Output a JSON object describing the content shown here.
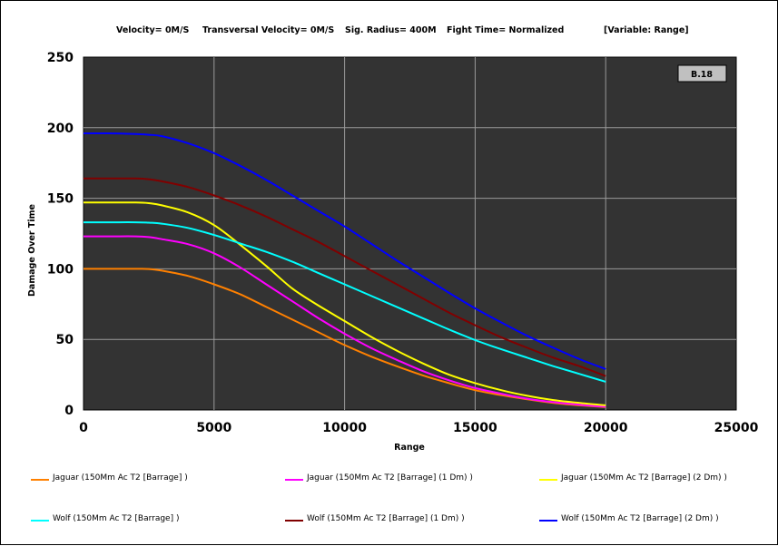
{
  "header": {
    "velocity": "Velocity= 0M/S",
    "transversal": "Transversal Velocity= 0M/S",
    "sig_radius": "Sig. Radius= 400M",
    "fight_time": "Fight Time= Normalized",
    "variable": "[Variable: Range]"
  },
  "badge": "B.18",
  "colors": {
    "plot_bg": "#333333",
    "grid": "#9a9a9a"
  },
  "chart_data": {
    "type": "line",
    "xlabel": "Range",
    "ylabel": "Damage Over Time",
    "xlim": [
      0,
      25000
    ],
    "ylim": [
      0,
      250
    ],
    "xticks": [
      "0",
      "5000",
      "10000",
      "15000",
      "20000",
      "25000"
    ],
    "yticks": [
      "0",
      "50",
      "100",
      "150",
      "200",
      "250"
    ],
    "grid": true,
    "legend_position": "bottom",
    "x": [
      0,
      1000,
      2000,
      2500,
      3000,
      4000,
      5000,
      6000,
      7000,
      8000,
      9000,
      10000,
      11000,
      12000,
      13000,
      14000,
      15000,
      16000,
      17000,
      18000,
      19000,
      20000
    ],
    "series": [
      {
        "name": "Jaguar (150Mm Ac T2 [Barrage] )",
        "color": "#ff8000",
        "values": [
          100,
          100,
          100,
          99.9,
          98.7,
          95,
          89,
          82,
          73,
          64,
          55,
          46,
          38,
          31,
          24.5,
          19,
          14,
          10.5,
          7.5,
          5,
          3.3,
          2
        ]
      },
      {
        "name": "Jaguar (150Mm Ac T2 [Barrage] (1 Dm) )",
        "color": "#ff00ff",
        "values": [
          123,
          123,
          123,
          122.5,
          121,
          117.5,
          111,
          101,
          89,
          77,
          65,
          54,
          44,
          35.5,
          27.5,
          21,
          15.5,
          11.5,
          8,
          5.5,
          3.7,
          2.3
        ]
      },
      {
        "name": "Jaguar (150Mm Ac T2 [Barrage] (2 Dm) )",
        "color": "#ffff00",
        "values": [
          147,
          147,
          147,
          146.5,
          145,
          140,
          131,
          117,
          102,
          86,
          74,
          63,
          52,
          42,
          33,
          25,
          19,
          14,
          10,
          7,
          5,
          3.3
        ]
      },
      {
        "name": "Wolf (150Mm Ac T2 [Barrage] )",
        "color": "#00ffff",
        "values": [
          133,
          133,
          133,
          132.7,
          132,
          129,
          124,
          118,
          112,
          105,
          97,
          89,
          81,
          73,
          65,
          57,
          49.5,
          43,
          37,
          31,
          25.5,
          20
        ]
      },
      {
        "name": "Wolf (150Mm Ac T2 [Barrage] (1 Dm) )",
        "color": "#800000",
        "values": [
          164,
          164,
          164,
          163.5,
          162,
          158,
          152,
          145,
          137,
          128,
          119,
          109,
          99,
          89,
          79,
          69,
          60,
          51.5,
          44,
          37,
          31,
          24
        ]
      },
      {
        "name": "Wolf (150Mm Ac T2 [Barrage] (2 Dm) )",
        "color": "#0000ff",
        "values": [
          196,
          196,
          195.5,
          195,
          194,
          189,
          182,
          173,
          163,
          152,
          141,
          130,
          118,
          106,
          94.5,
          83,
          72,
          62,
          52.5,
          44,
          36,
          29
        ]
      }
    ]
  }
}
